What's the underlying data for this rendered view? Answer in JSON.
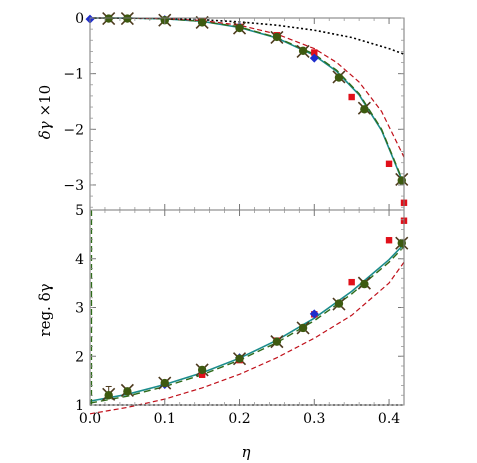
{
  "chart_data": [
    {
      "type": "scatter",
      "ylabel_parts": [
        "δγ",
        " ×10"
      ],
      "xlim": [
        0,
        0.42
      ],
      "ylim": [
        -3.45,
        0
      ],
      "x_ticks": [
        0.0,
        0.1,
        0.2,
        0.3,
        0.4
      ],
      "y_ticks": [
        0,
        -1,
        -2,
        -3
      ],
      "y_tick_labels": [
        "0",
        "−1",
        "−2",
        "−3"
      ],
      "grid": false,
      "colors": {
        "teal": "#1b8c8c",
        "green": "#2e6b1a",
        "red": "#c0101a",
        "black": "#000000",
        "blue": "#1f2ecc",
        "marker_x": "#4d3a1e"
      },
      "curves": [
        {
          "style": "solid-teal",
          "x": [
            0.0,
            0.05,
            0.1,
            0.15,
            0.2,
            0.25,
            0.3,
            0.33,
            0.36,
            0.39,
            0.42
          ],
          "y": [
            0.0,
            -0.002,
            -0.015,
            -0.06,
            -0.17,
            -0.36,
            -0.67,
            -0.96,
            -1.38,
            -2.02,
            -3.0
          ]
        },
        {
          "style": "dashed-green",
          "x": [
            0.0,
            0.05,
            0.1,
            0.15,
            0.2,
            0.25,
            0.3,
            0.33,
            0.36,
            0.39,
            0.42
          ],
          "y": [
            0.0,
            -0.002,
            -0.015,
            -0.06,
            -0.16,
            -0.35,
            -0.65,
            -0.94,
            -1.36,
            -2.0,
            -2.98
          ]
        },
        {
          "style": "dashed-red",
          "x": [
            0.0,
            0.05,
            0.1,
            0.15,
            0.2,
            0.25,
            0.3,
            0.33,
            0.36,
            0.39,
            0.42
          ],
          "y": [
            0.0,
            -0.001,
            -0.01,
            -0.045,
            -0.13,
            -0.29,
            -0.55,
            -0.8,
            -1.15,
            -1.68,
            -2.5
          ]
        },
        {
          "style": "dotted-black",
          "x": [
            0.0,
            0.1,
            0.15,
            0.2,
            0.25,
            0.3,
            0.35,
            0.4,
            0.42
          ],
          "y": [
            0.0,
            -0.008,
            -0.03,
            -0.07,
            -0.13,
            -0.22,
            -0.35,
            -0.55,
            -0.65
          ]
        }
      ],
      "points": [
        {
          "marker": "x",
          "x": [
            0.025,
            0.05,
            0.1,
            0.15,
            0.2,
            0.25,
            0.285,
            0.333,
            0.367,
            0.417
          ],
          "y": [
            -0.01,
            -0.01,
            -0.04,
            -0.08,
            -0.18,
            -0.35,
            -0.6,
            -1.06,
            -1.62,
            -2.9
          ]
        },
        {
          "marker": "square-red",
          "x": [
            0.15,
            0.2,
            0.25,
            0.3,
            0.35,
            0.4,
            0.42
          ],
          "y": [
            -0.05,
            -0.16,
            -0.31,
            -0.62,
            -1.42,
            -2.62,
            -3.32
          ]
        },
        {
          "marker": "diamond-blue",
          "x": [
            0.0,
            0.1,
            0.2,
            0.3
          ],
          "y": [
            -0.02,
            -0.03,
            -0.16,
            -0.72
          ]
        },
        {
          "marker": "circle-green",
          "x": [
            0.025,
            0.05,
            0.1,
            0.15,
            0.2,
            0.25,
            0.285,
            0.333,
            0.367,
            0.417
          ],
          "y": [
            -0.01,
            -0.01,
            -0.04,
            -0.08,
            -0.18,
            -0.34,
            -0.59,
            -1.07,
            -1.64,
            -2.92
          ]
        }
      ]
    },
    {
      "type": "scatter",
      "xlabel": "η",
      "ylabel": "reg. δγ",
      "xlim": [
        0,
        0.42
      ],
      "ylim": [
        1,
        5
      ],
      "x_ticks": [
        0.0,
        0.1,
        0.2,
        0.3,
        0.4
      ],
      "x_tick_labels": [
        "0.0",
        "0.1",
        "0.2",
        "0.3",
        "0.4"
      ],
      "y_ticks": [
        1,
        2,
        3,
        4,
        5
      ],
      "y_tick_labels": [
        "1",
        "2",
        "3",
        "4",
        "5"
      ],
      "grid": false,
      "curves": [
        {
          "style": "solid-teal",
          "x": [
            0.0,
            0.05,
            0.1,
            0.15,
            0.2,
            0.25,
            0.3,
            0.35,
            0.4,
            0.42
          ],
          "y": [
            1.08,
            1.22,
            1.42,
            1.66,
            1.96,
            2.33,
            2.78,
            3.33,
            3.98,
            4.3
          ]
        },
        {
          "style": "dashed-green",
          "x": [
            0.0,
            0.05,
            0.1,
            0.15,
            0.2,
            0.25,
            0.3,
            0.35,
            0.4,
            0.42
          ],
          "y": [
            1.04,
            1.18,
            1.38,
            1.62,
            1.92,
            2.28,
            2.73,
            3.28,
            3.93,
            4.25
          ]
        },
        {
          "style": "dashed-red",
          "x": [
            0.0,
            0.05,
            0.1,
            0.15,
            0.2,
            0.25,
            0.3,
            0.35,
            0.4,
            0.42
          ],
          "y": [
            0.82,
            0.95,
            1.12,
            1.35,
            1.63,
            1.97,
            2.37,
            2.84,
            3.5,
            3.93
          ]
        },
        {
          "style": "dotted-black",
          "x": [
            0.0,
            0.42
          ],
          "y": [
            1.0,
            1.0
          ]
        },
        {
          "style": "dashed-green-vertical",
          "x": [
            0.002,
            0.002
          ],
          "y": [
            1.0,
            5.0
          ]
        }
      ],
      "points": [
        {
          "marker": "x",
          "x": [
            0.025,
            0.05,
            0.1,
            0.15,
            0.2,
            0.25,
            0.285,
            0.333,
            0.367,
            0.417
          ],
          "y": [
            1.22,
            1.3,
            1.45,
            1.72,
            1.95,
            2.3,
            2.58,
            3.07,
            3.5,
            4.32
          ]
        },
        {
          "marker": "square-red",
          "x": [
            0.15,
            0.2,
            0.25,
            0.3,
            0.35,
            0.4,
            0.42
          ],
          "y": [
            1.62,
            1.92,
            2.32,
            2.86,
            3.52,
            4.38,
            4.78
          ]
        },
        {
          "marker": "diamond-blue",
          "x": [
            0.1,
            0.2,
            0.3
          ],
          "y": [
            1.42,
            1.97,
            2.87
          ]
        },
        {
          "marker": "circle-green",
          "x": [
            0.025,
            0.05,
            0.1,
            0.15,
            0.2,
            0.25,
            0.285,
            0.333,
            0.367,
            0.417
          ],
          "y": [
            1.2,
            1.28,
            1.45,
            1.72,
            1.95,
            2.3,
            2.58,
            3.08,
            3.48,
            4.32
          ]
        }
      ],
      "error_bars": [
        {
          "x": 0.025,
          "y_low": 1.14,
          "y_high": 1.38
        }
      ]
    }
  ]
}
